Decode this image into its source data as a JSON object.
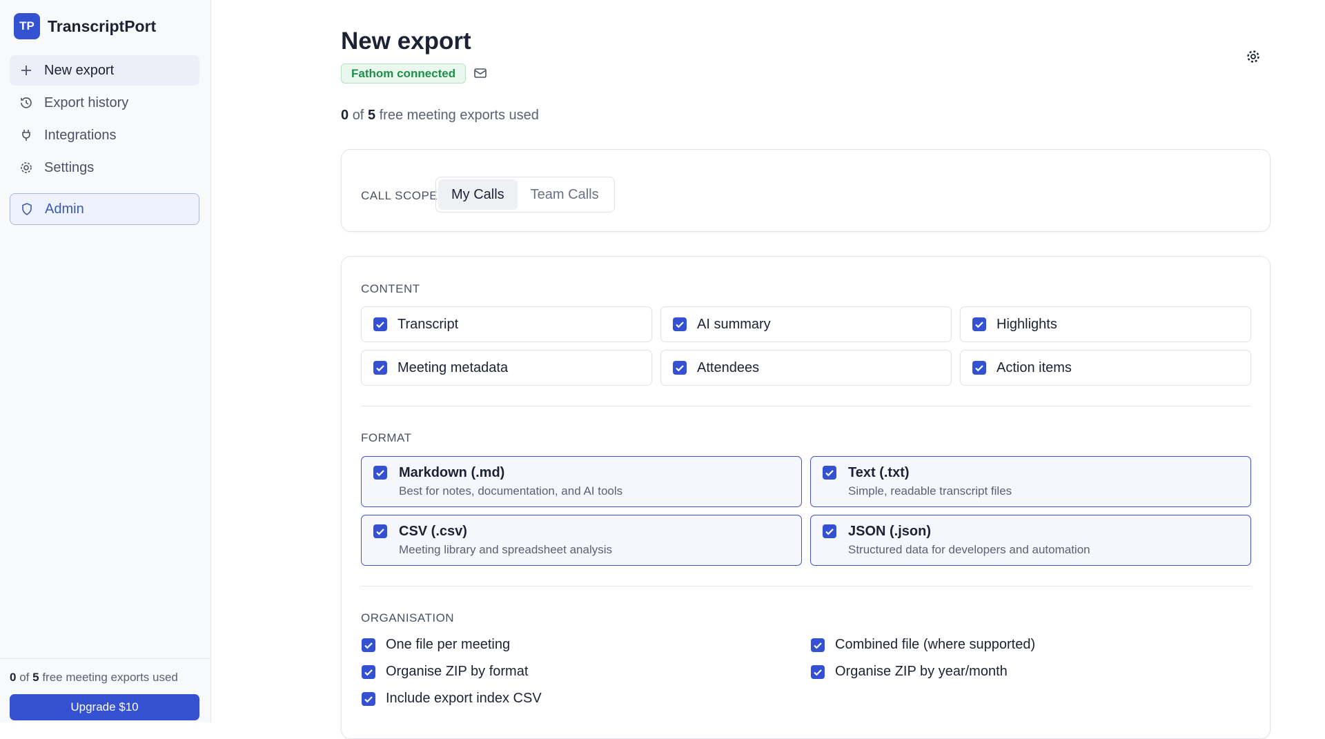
{
  "sidebar": {
    "logo": "TP",
    "brand": "TranscriptPort",
    "nav": [
      "New export",
      "Export history",
      "Integrations",
      "Settings"
    ],
    "admin": "Admin",
    "usage": {
      "used": 0,
      "of": "of",
      "limit": 5,
      "text": "free meeting exports used"
    },
    "upgrade": "Upgrade $10"
  },
  "header": {
    "title": "New export",
    "badge": "Fathom connected",
    "usage": {
      "used": 0,
      "of": "of",
      "limit": 5,
      "text": "free meeting exports used"
    }
  },
  "scope": {
    "label": "CALL SCOPE",
    "options": [
      "My Calls",
      "Team Calls"
    ]
  },
  "content": {
    "label": "CONTENT",
    "items": [
      "Transcript",
      "AI summary",
      "Highlights",
      "Meeting metadata",
      "Attendees",
      "Action items"
    ]
  },
  "format": {
    "label": "FORMAT",
    "items": [
      {
        "name": "Markdown (.md)",
        "desc": "Best for notes, documentation, and AI tools"
      },
      {
        "name": "Text (.txt)",
        "desc": "Simple, readable transcript files"
      },
      {
        "name": "CSV (.csv)",
        "desc": "Meeting library and spreadsheet analysis"
      },
      {
        "name": "JSON (.json)",
        "desc": "Structured data for developers and automation"
      }
    ]
  },
  "organisation": {
    "label": "ORGANISATION",
    "items": [
      "One file per meeting",
      "Combined file (where supported)",
      "Organise ZIP by format",
      "Organise ZIP by year/month",
      "Include export index CSV"
    ]
  }
}
